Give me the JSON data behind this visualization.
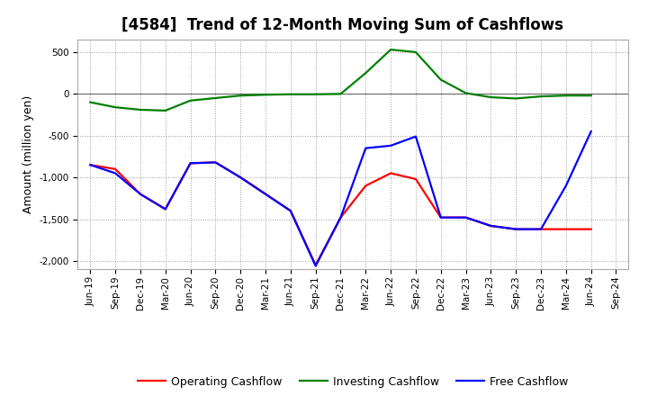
{
  "title": "[4584]  Trend of 12-Month Moving Sum of Cashflows",
  "ylabel": "Amount (million yen)",
  "xlabels": [
    "Jun-19",
    "Sep-19",
    "Dec-19",
    "Mar-20",
    "Jun-20",
    "Sep-20",
    "Dec-20",
    "Mar-21",
    "Jun-21",
    "Sep-21",
    "Dec-21",
    "Mar-22",
    "Jun-22",
    "Sep-22",
    "Dec-22",
    "Mar-23",
    "Jun-23",
    "Sep-23",
    "Dec-23",
    "Mar-24",
    "Jun-24",
    "Sep-24"
  ],
  "operating_cashflow": [
    -850,
    -900,
    -1200,
    -1380,
    -830,
    -820,
    -1000,
    -1200,
    -1400,
    -2050,
    -1480,
    -1100,
    -950,
    -1020,
    -1480,
    -1480,
    -1580,
    -1620,
    -1620,
    -1620,
    -1620,
    null
  ],
  "investing_cashflow": [
    -100,
    -160,
    -190,
    -200,
    -80,
    -50,
    -20,
    -10,
    -5,
    -5,
    0,
    250,
    530,
    500,
    170,
    10,
    -40,
    -55,
    -30,
    -20,
    -20,
    null
  ],
  "free_cashflow": [
    -850,
    -950,
    -1200,
    -1380,
    -830,
    -820,
    -1000,
    -1200,
    -1400,
    -2060,
    -1480,
    -650,
    -620,
    -510,
    -1480,
    -1480,
    -1580,
    -1620,
    -1620,
    -1100,
    -450,
    null
  ],
  "colors": {
    "operating": "#ff0000",
    "investing": "#008000",
    "free": "#0000ff"
  },
  "ylim": [
    -2100,
    650
  ],
  "yticks": [
    -2000,
    -1500,
    -1000,
    -500,
    0,
    500
  ],
  "background_color": "#ffffff",
  "plot_bg_color": "#ffffff",
  "grid_color": "#999999",
  "title_fontsize": 12,
  "axis_fontsize": 9,
  "tick_fontsize": 7.5,
  "linewidth": 1.6,
  "legend_fontsize": 9
}
